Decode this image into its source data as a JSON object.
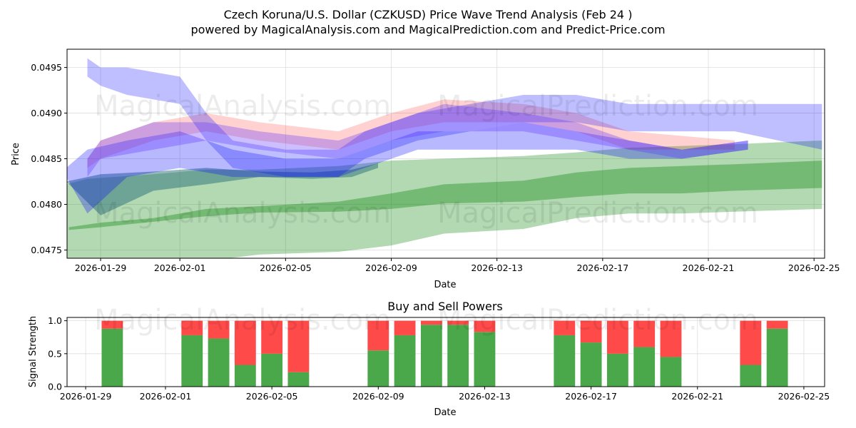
{
  "chart_data": [
    {
      "type": "area",
      "title": "Czech Koruna/U.S. Dollar (CZKUSD) Price Wave Trend Analysis (Feb 24 )",
      "subtitle": "powered by MagicalAnalysis.com and MagicalPrediction.com and Predict-Price.com",
      "xlabel": "Date",
      "ylabel": "Price",
      "x_origin": "2026-01-29",
      "xlim_days": [
        -1.27,
        27.4
      ],
      "ylim": [
        0.04741,
        0.0497
      ],
      "grid": true,
      "xticks": [
        {
          "d": 0,
          "label": "2026-01-29"
        },
        {
          "d": 3,
          "label": "2026-02-01"
        },
        {
          "d": 7,
          "label": "2026-02-05"
        },
        {
          "d": 11,
          "label": "2026-02-09"
        },
        {
          "d": 15,
          "label": "2026-02-13"
        },
        {
          "d": 19,
          "label": "2026-02-17"
        },
        {
          "d": 23,
          "label": "2026-02-21"
        },
        {
          "d": 27,
          "label": "2026-02-25"
        }
      ],
      "yticks": [
        {
          "v": 0.0475,
          "label": "0.0475"
        },
        {
          "v": 0.048,
          "label": "0.0480"
        },
        {
          "v": 0.0485,
          "label": "0.0485"
        },
        {
          "v": 0.049,
          "label": "0.0490"
        },
        {
          "v": 0.0495,
          "label": "0.0495"
        }
      ],
      "watermarks": [
        "MagicalAnalysis.com",
        "MagicalPrediction.com"
      ],
      "bands": [
        {
          "name": "green-outer",
          "color": "#008000",
          "alpha": 0.3,
          "days": [
            -1.3,
            -0.5,
            2,
            4,
            6,
            9,
            11,
            13,
            16,
            18,
            20,
            22,
            24,
            27.3
          ],
          "hi": [
            0.04822,
            0.04828,
            0.04833,
            0.04838,
            0.04838,
            0.04842,
            0.04848,
            0.0485,
            0.04853,
            0.04857,
            0.04862,
            0.04864,
            0.04866,
            0.0487
          ],
          "lo": [
            0.04725,
            0.0472,
            0.0473,
            0.04738,
            0.04745,
            0.04748,
            0.04755,
            0.04768,
            0.04773,
            0.04785,
            0.0479,
            0.0479,
            0.04792,
            0.04795
          ]
        },
        {
          "name": "green-inner",
          "color": "#008000",
          "alpha": 0.35,
          "days": [
            -1.2,
            0,
            2,
            4,
            6,
            9,
            11,
            13,
            16,
            18,
            20,
            22,
            24,
            27.3
          ],
          "hi": [
            0.04775,
            0.0478,
            0.04785,
            0.04795,
            0.04798,
            0.04803,
            0.04812,
            0.04822,
            0.04826,
            0.04835,
            0.0484,
            0.04842,
            0.04844,
            0.04848
          ],
          "lo": [
            0.04772,
            0.04775,
            0.04781,
            0.04787,
            0.04791,
            0.04792,
            0.04795,
            0.04801,
            0.04803,
            0.04808,
            0.04812,
            0.04812,
            0.04815,
            0.04818
          ]
        },
        {
          "name": "teal",
          "color": "#2a6f7a",
          "alpha": 0.5,
          "days": [
            -1.3,
            0,
            2,
            4,
            6,
            8,
            9.5,
            10.5
          ],
          "hi": [
            0.04825,
            0.04833,
            0.04836,
            0.0484,
            0.04836,
            0.04835,
            0.04838,
            0.04845
          ],
          "lo": [
            0.04825,
            0.04788,
            0.04815,
            0.04822,
            0.0483,
            0.04828,
            0.0483,
            0.0484
          ]
        },
        {
          "name": "red",
          "color": "#ff0000",
          "alpha": 0.18,
          "days": [
            -0.5,
            0,
            2,
            4,
            6,
            9,
            11,
            13,
            16,
            18,
            20,
            22,
            24
          ],
          "hi": [
            0.0485,
            0.0487,
            0.0489,
            0.049,
            0.0489,
            0.0488,
            0.049,
            0.04915,
            0.0491,
            0.049,
            0.0488,
            0.04875,
            0.0487
          ],
          "lo": [
            0.0484,
            0.0485,
            0.0487,
            0.0488,
            0.0487,
            0.0486,
            0.0488,
            0.0489,
            0.0489,
            0.0488,
            0.0486,
            0.0486,
            0.0486
          ]
        },
        {
          "name": "blue-1",
          "color": "#0000ff",
          "alpha": 0.25,
          "days": [
            -0.5,
            0,
            1,
            3,
            4,
            5,
            7,
            9,
            10,
            12,
            14,
            16,
            18,
            20,
            22,
            24,
            27.3
          ],
          "hi": [
            0.0496,
            0.0495,
            0.0495,
            0.0494,
            0.049,
            0.0487,
            0.0486,
            0.0486,
            0.0488,
            0.049,
            0.0491,
            0.0492,
            0.0492,
            0.0491,
            0.0491,
            0.0491,
            0.0491
          ],
          "lo": [
            0.0494,
            0.0493,
            0.0492,
            0.0491,
            0.0487,
            0.0484,
            0.0483,
            0.0483,
            0.0485,
            0.0487,
            0.0488,
            0.0489,
            0.0489,
            0.0488,
            0.0488,
            0.0488,
            0.0486
          ]
        },
        {
          "name": "blue-2",
          "color": "#0000ff",
          "alpha": 0.28,
          "days": [
            -1.3,
            -0.5,
            1,
            3,
            5,
            7,
            9,
            10,
            12,
            14,
            16,
            18,
            20,
            22,
            24.5
          ],
          "hi": [
            0.0484,
            0.0486,
            0.0487,
            0.0488,
            0.0486,
            0.0485,
            0.0485,
            0.0486,
            0.0488,
            0.0488,
            0.0489,
            0.0488,
            0.0487,
            0.0486,
            0.0487
          ],
          "lo": [
            0.0483,
            0.0479,
            0.0483,
            0.0484,
            0.0483,
            0.0483,
            0.0483,
            0.0484,
            0.0486,
            0.0486,
            0.0486,
            0.0486,
            0.0485,
            0.0485,
            0.0486
          ]
        },
        {
          "name": "blue-3",
          "color": "#5a2cff",
          "alpha": 0.3,
          "days": [
            -0.5,
            0,
            2,
            4,
            6,
            9,
            11,
            13,
            16,
            18,
            20,
            22,
            24.5
          ],
          "hi": [
            0.0485,
            0.0487,
            0.0489,
            0.0489,
            0.0488,
            0.0487,
            0.0489,
            0.0491,
            0.049,
            0.0489,
            0.0487,
            0.0486,
            0.0487
          ],
          "lo": [
            0.0483,
            0.0485,
            0.0486,
            0.0487,
            0.0486,
            0.0485,
            0.0487,
            0.0488,
            0.0488,
            0.0487,
            0.0486,
            0.0485,
            0.0486
          ]
        }
      ]
    },
    {
      "type": "bar",
      "title": "Buy and Sell Powers",
      "xlabel": "Date",
      "ylabel": "Signal Strength",
      "x_origin": "2026-01-29",
      "xlim_days": [
        -0.7,
        27.78
      ],
      "ylim": [
        0,
        1.05
      ],
      "xticks": [
        {
          "d": 0,
          "label": "2026-01-29"
        },
        {
          "d": 3,
          "label": "2026-02-01"
        },
        {
          "d": 7,
          "label": "2026-02-05"
        },
        {
          "d": 11,
          "label": "2026-02-09"
        },
        {
          "d": 15,
          "label": "2026-02-13"
        },
        {
          "d": 19,
          "label": "2026-02-17"
        },
        {
          "d": 23,
          "label": "2026-02-21"
        },
        {
          "d": 27,
          "label": "2026-02-25"
        }
      ],
      "yticks": [
        {
          "v": 0,
          "label": "0.0"
        },
        {
          "v": 0.5,
          "label": "0.5"
        },
        {
          "v": 1,
          "label": "1.0"
        }
      ],
      "buy_color": "#4aa84a",
      "sell_color": "#ff4a4a",
      "categories": [
        "2026-01-30",
        "2026-02-02",
        "2026-02-03",
        "2026-02-04",
        "2026-02-05",
        "2026-02-06",
        "2026-02-09",
        "2026-02-10",
        "2026-02-11",
        "2026-02-12",
        "2026-02-13",
        "2026-02-16",
        "2026-02-17",
        "2026-02-18",
        "2026-02-19",
        "2026-02-20",
        "2026-02-23",
        "2026-02-24"
      ],
      "days": [
        1,
        4,
        5,
        6,
        7,
        8,
        11,
        12,
        13,
        14,
        15,
        18,
        19,
        20,
        21,
        22,
        25,
        26
      ],
      "series": [
        {
          "name": "Buy",
          "values": [
            0.88,
            0.78,
            0.73,
            0.33,
            0.5,
            0.22,
            0.55,
            0.78,
            0.94,
            0.94,
            0.83,
            0.78,
            0.67,
            0.5,
            0.6,
            0.45,
            0.33,
            0.88
          ]
        },
        {
          "name": "Sell",
          "values": [
            0.12,
            0.22,
            0.27,
            0.67,
            0.5,
            0.78,
            0.45,
            0.22,
            0.06,
            0.06,
            0.17,
            0.22,
            0.33,
            0.5,
            0.4,
            0.55,
            0.67,
            0.12
          ]
        }
      ],
      "watermarks": [
        "MagicalAnalysis.com",
        "MagicalPrediction.com"
      ]
    }
  ]
}
